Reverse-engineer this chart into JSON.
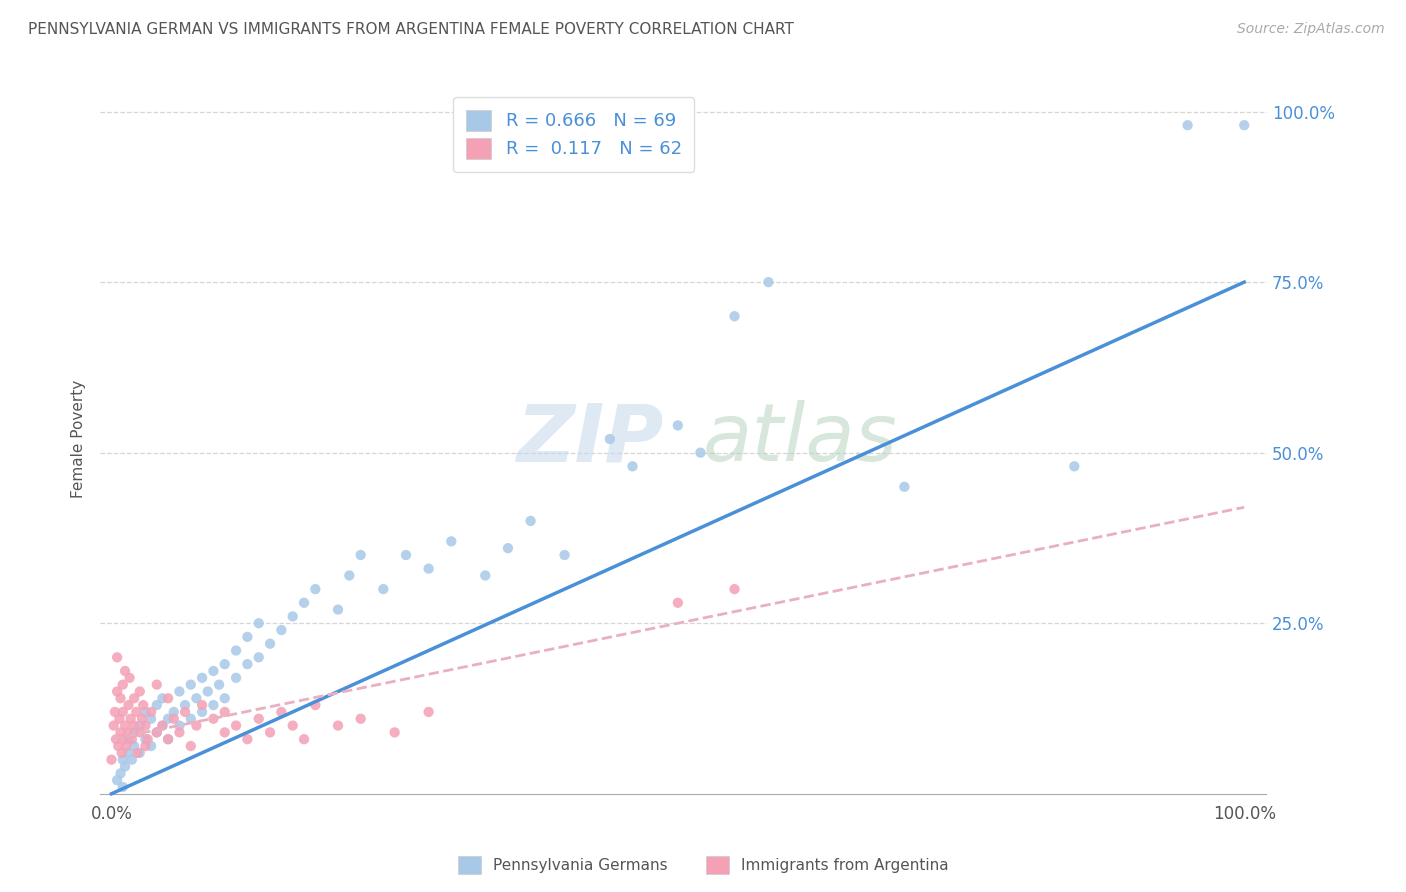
{
  "title": "PENNSYLVANIA GERMAN VS IMMIGRANTS FROM ARGENTINA FEMALE POVERTY CORRELATION CHART",
  "source": "Source: ZipAtlas.com",
  "ylabel": "Female Poverty",
  "r_blue": 0.666,
  "n_blue": 69,
  "r_pink": 0.117,
  "n_pink": 62,
  "blue_color": "#A8C8E8",
  "pink_color": "#F4A0B5",
  "line_blue": "#4A90D9",
  "line_pink": "#E8B0C0",
  "legend_label_blue": "Pennsylvania Germans",
  "legend_label_pink": "Immigrants from Argentina",
  "blue_scatter_x": [
    0.005,
    0.008,
    0.01,
    0.01,
    0.012,
    0.015,
    0.015,
    0.018,
    0.02,
    0.02,
    0.025,
    0.025,
    0.03,
    0.03,
    0.035,
    0.035,
    0.04,
    0.04,
    0.045,
    0.045,
    0.05,
    0.05,
    0.055,
    0.06,
    0.06,
    0.065,
    0.07,
    0.07,
    0.075,
    0.08,
    0.08,
    0.085,
    0.09,
    0.09,
    0.095,
    0.1,
    0.1,
    0.11,
    0.11,
    0.12,
    0.12,
    0.13,
    0.13,
    0.14,
    0.15,
    0.16,
    0.17,
    0.18,
    0.2,
    0.21,
    0.22,
    0.24,
    0.26,
    0.28,
    0.3,
    0.33,
    0.35,
    0.37,
    0.4,
    0.44,
    0.46,
    0.5,
    0.52,
    0.55,
    0.58,
    0.7,
    0.85,
    0.95,
    1.0
  ],
  "blue_scatter_y": [
    0.02,
    0.03,
    0.05,
    0.01,
    0.04,
    0.06,
    0.08,
    0.05,
    0.07,
    0.09,
    0.06,
    0.1,
    0.08,
    0.12,
    0.07,
    0.11,
    0.09,
    0.13,
    0.1,
    0.14,
    0.11,
    0.08,
    0.12,
    0.1,
    0.15,
    0.13,
    0.11,
    0.16,
    0.14,
    0.12,
    0.17,
    0.15,
    0.13,
    0.18,
    0.16,
    0.14,
    0.19,
    0.17,
    0.21,
    0.19,
    0.23,
    0.2,
    0.25,
    0.22,
    0.24,
    0.26,
    0.28,
    0.3,
    0.27,
    0.32,
    0.35,
    0.3,
    0.35,
    0.33,
    0.37,
    0.32,
    0.36,
    0.4,
    0.35,
    0.52,
    0.48,
    0.54,
    0.5,
    0.7,
    0.75,
    0.45,
    0.48,
    0.98,
    0.98
  ],
  "pink_scatter_x": [
    0.0,
    0.002,
    0.003,
    0.004,
    0.005,
    0.005,
    0.006,
    0.007,
    0.008,
    0.008,
    0.009,
    0.01,
    0.01,
    0.01,
    0.012,
    0.012,
    0.013,
    0.015,
    0.015,
    0.016,
    0.017,
    0.018,
    0.02,
    0.02,
    0.022,
    0.023,
    0.025,
    0.025,
    0.027,
    0.028,
    0.03,
    0.03,
    0.032,
    0.035,
    0.04,
    0.04,
    0.045,
    0.05,
    0.05,
    0.055,
    0.06,
    0.065,
    0.07,
    0.075,
    0.08,
    0.09,
    0.1,
    0.1,
    0.11,
    0.12,
    0.13,
    0.14,
    0.15,
    0.16,
    0.17,
    0.18,
    0.2,
    0.22,
    0.25,
    0.28,
    0.5,
    0.55
  ],
  "pink_scatter_y": [
    0.05,
    0.1,
    0.12,
    0.08,
    0.15,
    0.2,
    0.07,
    0.11,
    0.09,
    0.14,
    0.06,
    0.08,
    0.12,
    0.16,
    0.1,
    0.18,
    0.07,
    0.09,
    0.13,
    0.17,
    0.11,
    0.08,
    0.1,
    0.14,
    0.12,
    0.06,
    0.15,
    0.09,
    0.11,
    0.13,
    0.07,
    0.1,
    0.08,
    0.12,
    0.09,
    0.16,
    0.1,
    0.08,
    0.14,
    0.11,
    0.09,
    0.12,
    0.07,
    0.1,
    0.13,
    0.11,
    0.09,
    0.12,
    0.1,
    0.08,
    0.11,
    0.09,
    0.12,
    0.1,
    0.08,
    0.13,
    0.1,
    0.11,
    0.09,
    0.12,
    0.28,
    0.3
  ],
  "blue_line_x": [
    0.0,
    1.0
  ],
  "blue_line_y": [
    0.0,
    0.75
  ],
  "pink_line_x": [
    0.0,
    1.0
  ],
  "pink_line_y": [
    0.08,
    0.42
  ],
  "xlim": [
    -0.01,
    1.02
  ],
  "ylim": [
    -0.01,
    1.05
  ],
  "xticks": [
    0.0,
    0.25,
    0.5,
    0.75,
    1.0
  ],
  "yticks": [
    0.25,
    0.5,
    0.75,
    1.0
  ],
  "right_yticks": [
    0.0,
    0.25,
    0.5,
    0.75,
    1.0
  ],
  "xticklabels_show": [
    "0.0%",
    "",
    "",
    "",
    "100.0%"
  ],
  "right_yticklabels": [
    "",
    "25.0%",
    "50.0%",
    "75.0%",
    "100.0%"
  ]
}
